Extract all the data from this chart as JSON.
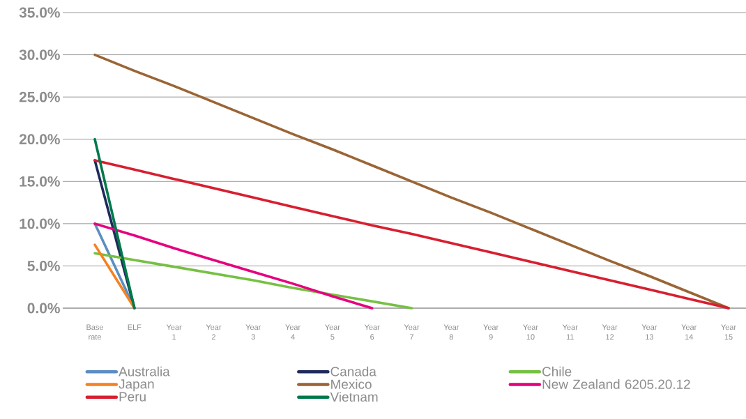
{
  "chart_data": {
    "type": "line",
    "categories": [
      "Base rate",
      "ELF",
      "Year 1",
      "Year 2",
      "Year 3",
      "Year 4",
      "Year 5",
      "Year 6",
      "Year 7",
      "Year 8",
      "Year 9",
      "Year 10",
      "Year 11",
      "Year 12",
      "Year 13",
      "Year 14",
      "Year 15"
    ],
    "series": [
      {
        "name": "Australia",
        "color": "#5b8ec1",
        "values": [
          10,
          0,
          null,
          null,
          null,
          null,
          null,
          null,
          null,
          null,
          null,
          null,
          null,
          null,
          null,
          null,
          null
        ]
      },
      {
        "name": "Canada",
        "color": "#1f2a5c",
        "values": [
          17.5,
          0,
          null,
          null,
          null,
          null,
          null,
          null,
          null,
          null,
          null,
          null,
          null,
          null,
          null,
          null,
          null
        ]
      },
      {
        "name": "Chile",
        "color": "#76c043",
        "values": [
          6.5,
          5.7,
          4.9,
          4.1,
          3.3,
          2.4,
          1.6,
          0.8,
          0,
          null,
          null,
          null,
          null,
          null,
          null,
          null,
          null
        ]
      },
      {
        "name": "Japan",
        "color": "#f58220",
        "values": [
          7.5,
          0,
          null,
          null,
          null,
          null,
          null,
          null,
          null,
          null,
          null,
          null,
          null,
          null,
          null,
          null,
          null
        ]
      },
      {
        "name": "Mexico",
        "color": "#9a6535",
        "values": [
          30,
          28.1,
          26.3,
          24.4,
          22.5,
          20.6,
          18.8,
          16.9,
          15.0,
          13.1,
          11.3,
          9.4,
          7.5,
          5.6,
          3.8,
          1.9,
          0
        ]
      },
      {
        "name": "New Zealand 6205.20.12",
        "color": "#e6007e",
        "values": [
          10,
          8.6,
          7.1,
          5.7,
          4.3,
          2.9,
          1.4,
          0,
          null,
          null,
          null,
          null,
          null,
          null,
          null,
          null,
          null
        ]
      },
      {
        "name": "Peru",
        "color": "#d71f30",
        "values": [
          17.5,
          16.4,
          15.3,
          14.2,
          13.1,
          12.0,
          10.9,
          9.8,
          8.8,
          7.7,
          6.6,
          5.5,
          4.4,
          3.3,
          2.2,
          1.1,
          0
        ]
      },
      {
        "name": "Vietnam",
        "color": "#00794a",
        "values": [
          20,
          0,
          null,
          null,
          null,
          null,
          null,
          null,
          null,
          null,
          null,
          null,
          null,
          null,
          null,
          null,
          null
        ]
      }
    ],
    "ylim": [
      0,
      35
    ],
    "yticks": [
      {
        "value": 0,
        "label": "0.0%"
      },
      {
        "value": 5,
        "label": "5.0%"
      },
      {
        "value": 10,
        "label": "10.0%"
      },
      {
        "value": 15,
        "label": "15.0%"
      },
      {
        "value": 20,
        "label": "20.0%"
      },
      {
        "value": 25,
        "label": "25.0%"
      },
      {
        "value": 30,
        "label": "30.0%"
      },
      {
        "value": 35,
        "label": "35.0%"
      }
    ],
    "grid": "y",
    "legend": "bottom",
    "marker": "none",
    "line_style": "solid"
  }
}
